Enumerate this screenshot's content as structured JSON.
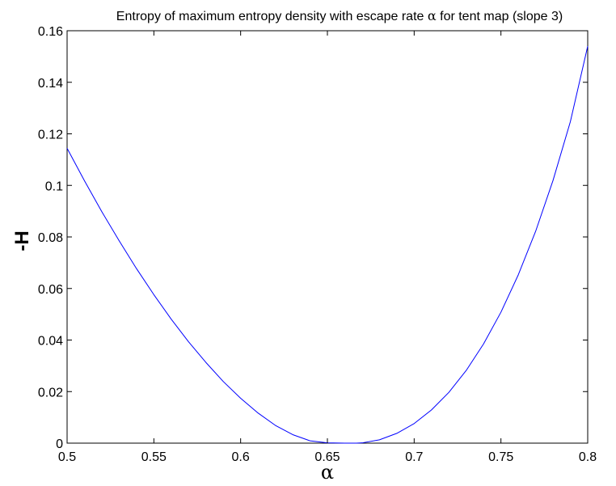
{
  "chart_data": {
    "type": "line",
    "title_prefix": "Entropy of maximum entropy density with escape rate ",
    "title_symbol": "α",
    "title_suffix": " for tent map (slope 3)",
    "xlabel": "α",
    "ylabel": "-H",
    "xlim": [
      0.5,
      0.8
    ],
    "ylim": [
      0,
      0.16
    ],
    "xticks": [
      0.5,
      0.55,
      0.6,
      0.65,
      0.7,
      0.75,
      0.8
    ],
    "xtick_labels": [
      "0.5",
      "0.55",
      "0.6",
      "0.65",
      "0.7",
      "0.75",
      "0.8"
    ],
    "yticks": [
      0,
      0.02,
      0.04,
      0.06,
      0.08,
      0.1,
      0.12,
      0.14,
      0.16
    ],
    "ytick_labels": [
      "0",
      "0.02",
      "0.04",
      "0.06",
      "0.08",
      "0.1",
      "0.12",
      "0.14",
      "0.16"
    ],
    "grid": false,
    "line_color": "#0000ff",
    "series": [
      {
        "x": [
          0.5,
          0.51,
          0.52,
          0.53,
          0.54,
          0.55,
          0.56,
          0.57,
          0.58,
          0.59,
          0.6,
          0.61,
          0.62,
          0.63,
          0.64,
          0.65,
          0.66,
          0.6667,
          0.67,
          0.68,
          0.69,
          0.7,
          0.71,
          0.72,
          0.73,
          0.74,
          0.75,
          0.76,
          0.77,
          0.78,
          0.79,
          0.8
        ],
        "y": [
          0.1144,
          0.1018,
          0.0898,
          0.0785,
          0.0677,
          0.0576,
          0.0481,
          0.0393,
          0.0313,
          0.0239,
          0.0174,
          0.0117,
          0.0069,
          0.0033,
          0.0009,
          0.0001,
          0.0,
          0.0,
          0.0001,
          0.0013,
          0.0038,
          0.0076,
          0.0129,
          0.0197,
          0.0282,
          0.0385,
          0.0508,
          0.0653,
          0.0822,
          0.1019,
          0.1247,
          0.154
        ]
      }
    ]
  }
}
